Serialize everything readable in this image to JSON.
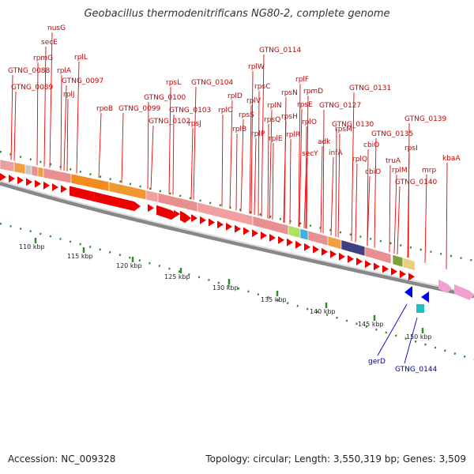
{
  "title": "Geobacillus thermodenitrificans NG80-2, complete genome",
  "footer": {
    "accession": "Accession: NC_009328",
    "summary": "Topology: circular; Length: 3,550,319 bp; Genes: 3,509"
  },
  "kbp_labels": [
    "110 kbp",
    "115 kbp",
    "120 kbp",
    "125 kbp",
    "130 kbp",
    "135 kbp",
    "140 kbp",
    "145 kbp",
    "150 kbp"
  ],
  "gene_labels_top": [
    {
      "text": "nusG",
      "color": "#cc0000"
    },
    {
      "text": "secE",
      "color": "#cc0000"
    },
    {
      "text": "rpmG",
      "color": "#cc0000"
    },
    {
      "text": "rplL",
      "color": "#cc0000"
    },
    {
      "text": "GTNG_0088",
      "color": "#cc0000"
    },
    {
      "text": "rplA",
      "color": "#cc0000"
    },
    {
      "text": "GTNG_0097",
      "color": "#cc0000"
    },
    {
      "text": "GTNG_0089",
      "color": "#cc0000"
    },
    {
      "text": "rplJ",
      "color": "#cc0000"
    },
    {
      "text": "rpoB",
      "color": "#cc0000"
    },
    {
      "text": "GTNG_0099",
      "color": "#cc0000"
    },
    {
      "text": "GTNG_0100",
      "color": "#cc0000"
    },
    {
      "text": "GTNG_0102",
      "color": "#cc0000"
    },
    {
      "text": "rpsL",
      "color": "#cc0000"
    },
    {
      "text": "GTNG_0103",
      "color": "#cc0000"
    },
    {
      "text": "GTNG_0104",
      "color": "#cc0000"
    },
    {
      "text": "rpsJ",
      "color": "#cc0000"
    },
    {
      "text": "rplC",
      "color": "#cc0000"
    },
    {
      "text": "rplD",
      "color": "#cc0000"
    },
    {
      "text": "rplW",
      "color": "#cc0000"
    },
    {
      "text": "rplB",
      "color": "#cc0000"
    },
    {
      "text": "rpsS",
      "color": "#cc0000"
    },
    {
      "text": "rplV",
      "color": "#cc0000"
    },
    {
      "text": "rpsC",
      "color": "#cc0000"
    },
    {
      "text": "GTNG_0114",
      "color": "#cc0000"
    },
    {
      "text": "rplP",
      "color": "#cc0000"
    },
    {
      "text": "rpsQ",
      "color": "#cc0000"
    },
    {
      "text": "rplN",
      "color": "#cc0000"
    },
    {
      "text": "rpsN",
      "color": "#cc0000"
    },
    {
      "text": "rplE",
      "color": "#cc0000"
    },
    {
      "text": "rpsH",
      "color": "#cc0000"
    },
    {
      "text": "rplF",
      "color": "#cc0000"
    },
    {
      "text": "rplR",
      "color": "#cc0000"
    },
    {
      "text": "rpsE",
      "color": "#cc0000"
    },
    {
      "text": "rpmD",
      "color": "#cc0000"
    },
    {
      "text": "rplO",
      "color": "#cc0000"
    },
    {
      "text": "secY",
      "color": "#cc0000"
    },
    {
      "text": "adk",
      "color": "#cc0000"
    },
    {
      "text": "GTNG_0127",
      "color": "#cc0000"
    },
    {
      "text": "infA",
      "color": "#cc0000"
    },
    {
      "text": "rpsM",
      "color": "#cc0000"
    },
    {
      "text": "GTNG_0130",
      "color": "#cc0000"
    },
    {
      "text": "GTNG_0131",
      "color": "#cc0000"
    },
    {
      "text": "rplQ",
      "color": "#cc0000"
    },
    {
      "text": "cbiO",
      "color": "#cc0000"
    },
    {
      "text": "cbiO",
      "color": "#cc0000"
    },
    {
      "text": "GTNG_0135",
      "color": "#cc0000"
    },
    {
      "text": "truA",
      "color": "#cc0000"
    },
    {
      "text": "rplM",
      "color": "#cc0000"
    },
    {
      "text": "rpsI",
      "color": "#cc0000"
    },
    {
      "text": "GTNG_0139",
      "color": "#cc0000"
    },
    {
      "text": "GTNG_0140",
      "color": "#cc0000"
    },
    {
      "text": "mrp",
      "color": "#cc0000"
    },
    {
      "text": "kbaA",
      "color": "#cc0000"
    }
  ],
  "gene_labels_bottom": [
    {
      "text": "gerD",
      "color": "#0000aa"
    },
    {
      "text": "GTNG_0144",
      "color": "#0000aa"
    }
  ]
}
